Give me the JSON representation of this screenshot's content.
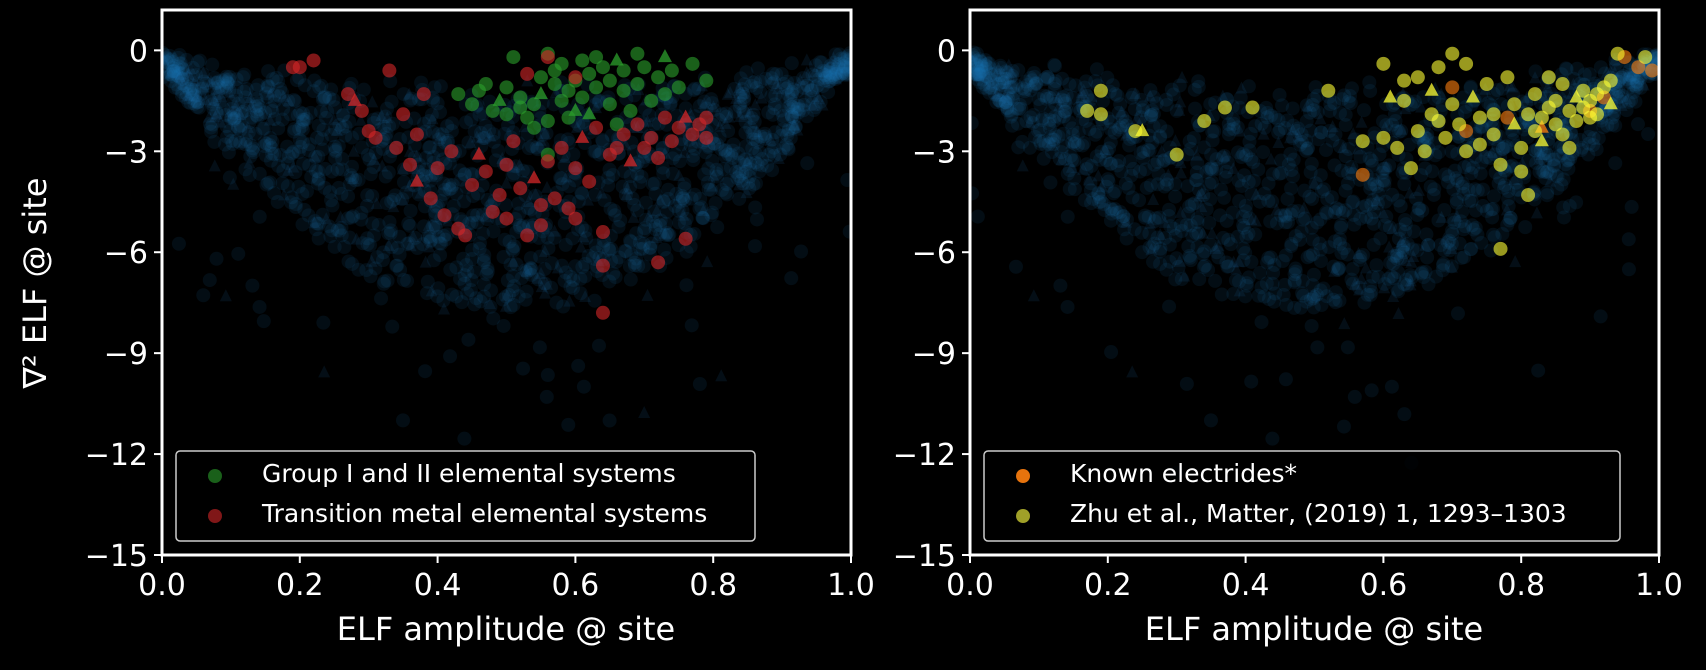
{
  "figure": {
    "background": "#000000",
    "foreground": "#ffffff"
  },
  "chart_data": [
    {
      "type": "scatter",
      "panel": "left",
      "xlabel": "ELF amplitude @ site",
      "ylabel": "∇² ELF @ site",
      "xlim": [
        0.0,
        1.0
      ],
      "ylim": [
        -15,
        1.2
      ],
      "xticks": [
        0.0,
        0.2,
        0.4,
        0.6,
        0.8,
        1.0
      ],
      "xtick_labels": [
        "0.0",
        "0.2",
        "0.4",
        "0.6",
        "0.8",
        "1.0"
      ],
      "yticks": [
        0,
        -3,
        -6,
        -9,
        -12,
        -15
      ],
      "ytick_labels": [
        "0",
        "−3",
        "−6",
        "−9",
        "−12",
        "−15"
      ],
      "grid": false,
      "legend_position": "lower-left",
      "background_series": {
        "color": "#1f77b4",
        "description": "dense faint blue cloud of all sites"
      },
      "series": [
        {
          "name": "Group I and II elemental systems",
          "color": "#2ca02c",
          "points": [
            [
              0.43,
              -1.3
            ],
            [
              0.45,
              -1.6
            ],
            [
              0.46,
              -1.2
            ],
            [
              0.48,
              -1.8
            ],
            [
              0.49,
              -1.5
            ],
            [
              0.5,
              -1.9
            ],
            [
              0.5,
              -1.1
            ],
            [
              0.51,
              -0.2
            ],
            [
              0.52,
              -1.7
            ],
            [
              0.52,
              -1.4
            ],
            [
              0.53,
              -2.0
            ],
            [
              0.54,
              -1.6
            ],
            [
              0.55,
              -0.8
            ],
            [
              0.55,
              -1.3
            ],
            [
              0.56,
              -0.1
            ],
            [
              0.56,
              -2.1
            ],
            [
              0.57,
              -0.6
            ],
            [
              0.57,
              -1.0
            ],
            [
              0.58,
              -1.5
            ],
            [
              0.58,
              -0.4
            ],
            [
              0.59,
              -1.2
            ],
            [
              0.6,
              -0.9
            ],
            [
              0.6,
              -1.8
            ],
            [
              0.61,
              -0.3
            ],
            [
              0.61,
              -1.4
            ],
            [
              0.62,
              -0.7
            ],
            [
              0.63,
              -1.1
            ],
            [
              0.63,
              -0.2
            ],
            [
              0.64,
              -0.5
            ],
            [
              0.65,
              -1.6
            ],
            [
              0.65,
              -0.9
            ],
            [
              0.66,
              -0.3
            ],
            [
              0.67,
              -1.2
            ],
            [
              0.67,
              -0.6
            ],
            [
              0.68,
              -1.8
            ],
            [
              0.69,
              -0.1
            ],
            [
              0.69,
              -1.0
            ],
            [
              0.7,
              -0.5
            ],
            [
              0.71,
              -1.5
            ],
            [
              0.72,
              -0.8
            ],
            [
              0.73,
              -0.2
            ],
            [
              0.73,
              -1.3
            ],
            [
              0.74,
              -0.6
            ],
            [
              0.75,
              -1.1
            ],
            [
              0.77,
              -0.4
            ],
            [
              0.79,
              -0.9
            ],
            [
              0.47,
              -1.0
            ],
            [
              0.54,
              -2.3
            ],
            [
              0.59,
              -2.0
            ],
            [
              0.62,
              -1.9
            ],
            [
              0.56,
              -3.1
            ],
            [
              0.66,
              -2.2
            ]
          ]
        },
        {
          "name": "Transition metal elemental systems",
          "color": "#d62728",
          "points": [
            [
              0.19,
              -0.5
            ],
            [
              0.2,
              -0.5
            ],
            [
              0.22,
              -0.3
            ],
            [
              0.27,
              -1.3
            ],
            [
              0.28,
              -1.5
            ],
            [
              0.29,
              -1.8
            ],
            [
              0.3,
              -2.4
            ],
            [
              0.31,
              -2.6
            ],
            [
              0.33,
              -0.6
            ],
            [
              0.34,
              -2.9
            ],
            [
              0.35,
              -1.9
            ],
            [
              0.36,
              -3.4
            ],
            [
              0.37,
              -2.5
            ],
            [
              0.37,
              -3.9
            ],
            [
              0.38,
              -1.3
            ],
            [
              0.39,
              -4.4
            ],
            [
              0.4,
              -3.5
            ],
            [
              0.41,
              -4.9
            ],
            [
              0.42,
              -3.0
            ],
            [
              0.43,
              -5.3
            ],
            [
              0.44,
              -5.5
            ],
            [
              0.45,
              -4.0
            ],
            [
              0.46,
              -3.1
            ],
            [
              0.47,
              -3.6
            ],
            [
              0.48,
              -4.8
            ],
            [
              0.49,
              -4.3
            ],
            [
              0.5,
              -3.4
            ],
            [
              0.5,
              -5.0
            ],
            [
              0.51,
              -2.7
            ],
            [
              0.52,
              -4.1
            ],
            [
              0.53,
              -5.5
            ],
            [
              0.54,
              -3.8
            ],
            [
              0.55,
              -4.6
            ],
            [
              0.55,
              -5.2
            ],
            [
              0.56,
              -3.3
            ],
            [
              0.57,
              -4.4
            ],
            [
              0.58,
              -2.9
            ],
            [
              0.59,
              -4.7
            ],
            [
              0.6,
              -3.5
            ],
            [
              0.6,
              -5.0
            ],
            [
              0.61,
              -2.6
            ],
            [
              0.62,
              -3.9
            ],
            [
              0.63,
              -2.3
            ],
            [
              0.64,
              -5.4
            ],
            [
              0.64,
              -6.4
            ],
            [
              0.64,
              -7.8
            ],
            [
              0.65,
              -3.1
            ],
            [
              0.66,
              -2.9
            ],
            [
              0.67,
              -2.5
            ],
            [
              0.68,
              -3.3
            ],
            [
              0.69,
              -2.2
            ],
            [
              0.7,
              -2.9
            ],
            [
              0.71,
              -2.6
            ],
            [
              0.72,
              -6.3
            ],
            [
              0.72,
              -3.2
            ],
            [
              0.73,
              -2.0
            ],
            [
              0.74,
              -2.7
            ],
            [
              0.75,
              -2.3
            ],
            [
              0.76,
              -2.0
            ],
            [
              0.76,
              -5.6
            ],
            [
              0.77,
              -2.5
            ],
            [
              0.78,
              -2.2
            ],
            [
              0.79,
              -2.0
            ],
            [
              0.79,
              -2.6
            ],
            [
              0.56,
              -0.2
            ],
            [
              0.53,
              -0.7
            ],
            [
              0.6,
              -0.8
            ]
          ]
        }
      ]
    },
    {
      "type": "scatter",
      "panel": "right",
      "xlabel": "ELF amplitude @ site",
      "ylabel": "",
      "xlim": [
        0.0,
        1.0
      ],
      "ylim": [
        -15,
        1.2
      ],
      "xticks": [
        0.0,
        0.2,
        0.4,
        0.6,
        0.8,
        1.0
      ],
      "xtick_labels": [
        "0.0",
        "0.2",
        "0.4",
        "0.6",
        "0.8",
        "1.0"
      ],
      "yticks": [
        0,
        -3,
        -6,
        -9,
        -12,
        -15
      ],
      "ytick_labels": [
        "0",
        "−3",
        "−6",
        "−9",
        "−12",
        "−15"
      ],
      "grid": false,
      "legend_position": "lower-left",
      "background_series": {
        "color": "#1f77b4",
        "description": "dense faint blue cloud of all sites"
      },
      "series": [
        {
          "name": "Known electrides*",
          "color": "#ff7f0e",
          "points": [
            [
              0.57,
              -3.7
            ],
            [
              0.7,
              -1.1
            ],
            [
              0.72,
              -2.4
            ],
            [
              0.78,
              -2.0
            ],
            [
              0.83,
              -2.3
            ],
            [
              0.9,
              -1.8
            ],
            [
              0.92,
              -1.4
            ],
            [
              0.95,
              -0.2
            ],
            [
              0.97,
              -0.5
            ],
            [
              0.99,
              -0.6
            ]
          ]
        },
        {
          "name": "Zhu et al., Matter, (2019) 1, 1293–1303",
          "color": "#ffff33",
          "points": [
            [
              0.17,
              -1.8
            ],
            [
              0.19,
              -1.2
            ],
            [
              0.19,
              -1.9
            ],
            [
              0.24,
              -2.4
            ],
            [
              0.25,
              -2.4
            ],
            [
              0.3,
              -3.1
            ],
            [
              0.34,
              -2.1
            ],
            [
              0.37,
              -1.7
            ],
            [
              0.41,
              -1.7
            ],
            [
              0.52,
              -1.2
            ],
            [
              0.57,
              -2.7
            ],
            [
              0.6,
              -0.4
            ],
            [
              0.6,
              -2.6
            ],
            [
              0.61,
              -1.4
            ],
            [
              0.62,
              -2.9
            ],
            [
              0.63,
              -1.5
            ],
            [
              0.63,
              -0.9
            ],
            [
              0.64,
              -3.5
            ],
            [
              0.65,
              -2.4
            ],
            [
              0.65,
              -0.8
            ],
            [
              0.66,
              -3.0
            ],
            [
              0.67,
              -1.9
            ],
            [
              0.67,
              -1.2
            ],
            [
              0.68,
              -2.1
            ],
            [
              0.68,
              -0.5
            ],
            [
              0.69,
              -2.6
            ],
            [
              0.7,
              -0.1
            ],
            [
              0.7,
              -1.6
            ],
            [
              0.71,
              -2.2
            ],
            [
              0.72,
              -0.4
            ],
            [
              0.72,
              -3.0
            ],
            [
              0.73,
              -1.4
            ],
            [
              0.74,
              -2.0
            ],
            [
              0.74,
              -2.8
            ],
            [
              0.75,
              -1.0
            ],
            [
              0.76,
              -1.9
            ],
            [
              0.76,
              -2.5
            ],
            [
              0.77,
              -3.4
            ],
            [
              0.77,
              -5.9
            ],
            [
              0.78,
              -0.8
            ],
            [
              0.79,
              -2.2
            ],
            [
              0.79,
              -1.6
            ],
            [
              0.8,
              -2.9
            ],
            [
              0.8,
              -3.6
            ],
            [
              0.81,
              -4.3
            ],
            [
              0.81,
              -1.9
            ],
            [
              0.82,
              -2.4
            ],
            [
              0.82,
              -1.3
            ],
            [
              0.83,
              -2.0
            ],
            [
              0.83,
              -2.7
            ],
            [
              0.84,
              -1.7
            ],
            [
              0.84,
              -0.8
            ],
            [
              0.85,
              -2.2
            ],
            [
              0.85,
              -1.5
            ],
            [
              0.86,
              -2.5
            ],
            [
              0.86,
              -1.0
            ],
            [
              0.87,
              -1.8
            ],
            [
              0.87,
              -2.9
            ],
            [
              0.88,
              -1.4
            ],
            [
              0.88,
              -2.1
            ],
            [
              0.89,
              -1.2
            ],
            [
              0.89,
              -1.7
            ],
            [
              0.9,
              -2.0
            ],
            [
              0.9,
              -1.5
            ],
            [
              0.91,
              -1.3
            ],
            [
              0.91,
              -1.9
            ],
            [
              0.92,
              -1.1
            ],
            [
              0.93,
              -1.6
            ],
            [
              0.93,
              -0.9
            ],
            [
              0.94,
              -0.1
            ],
            [
              0.98,
              -0.2
            ]
          ]
        }
      ]
    }
  ]
}
